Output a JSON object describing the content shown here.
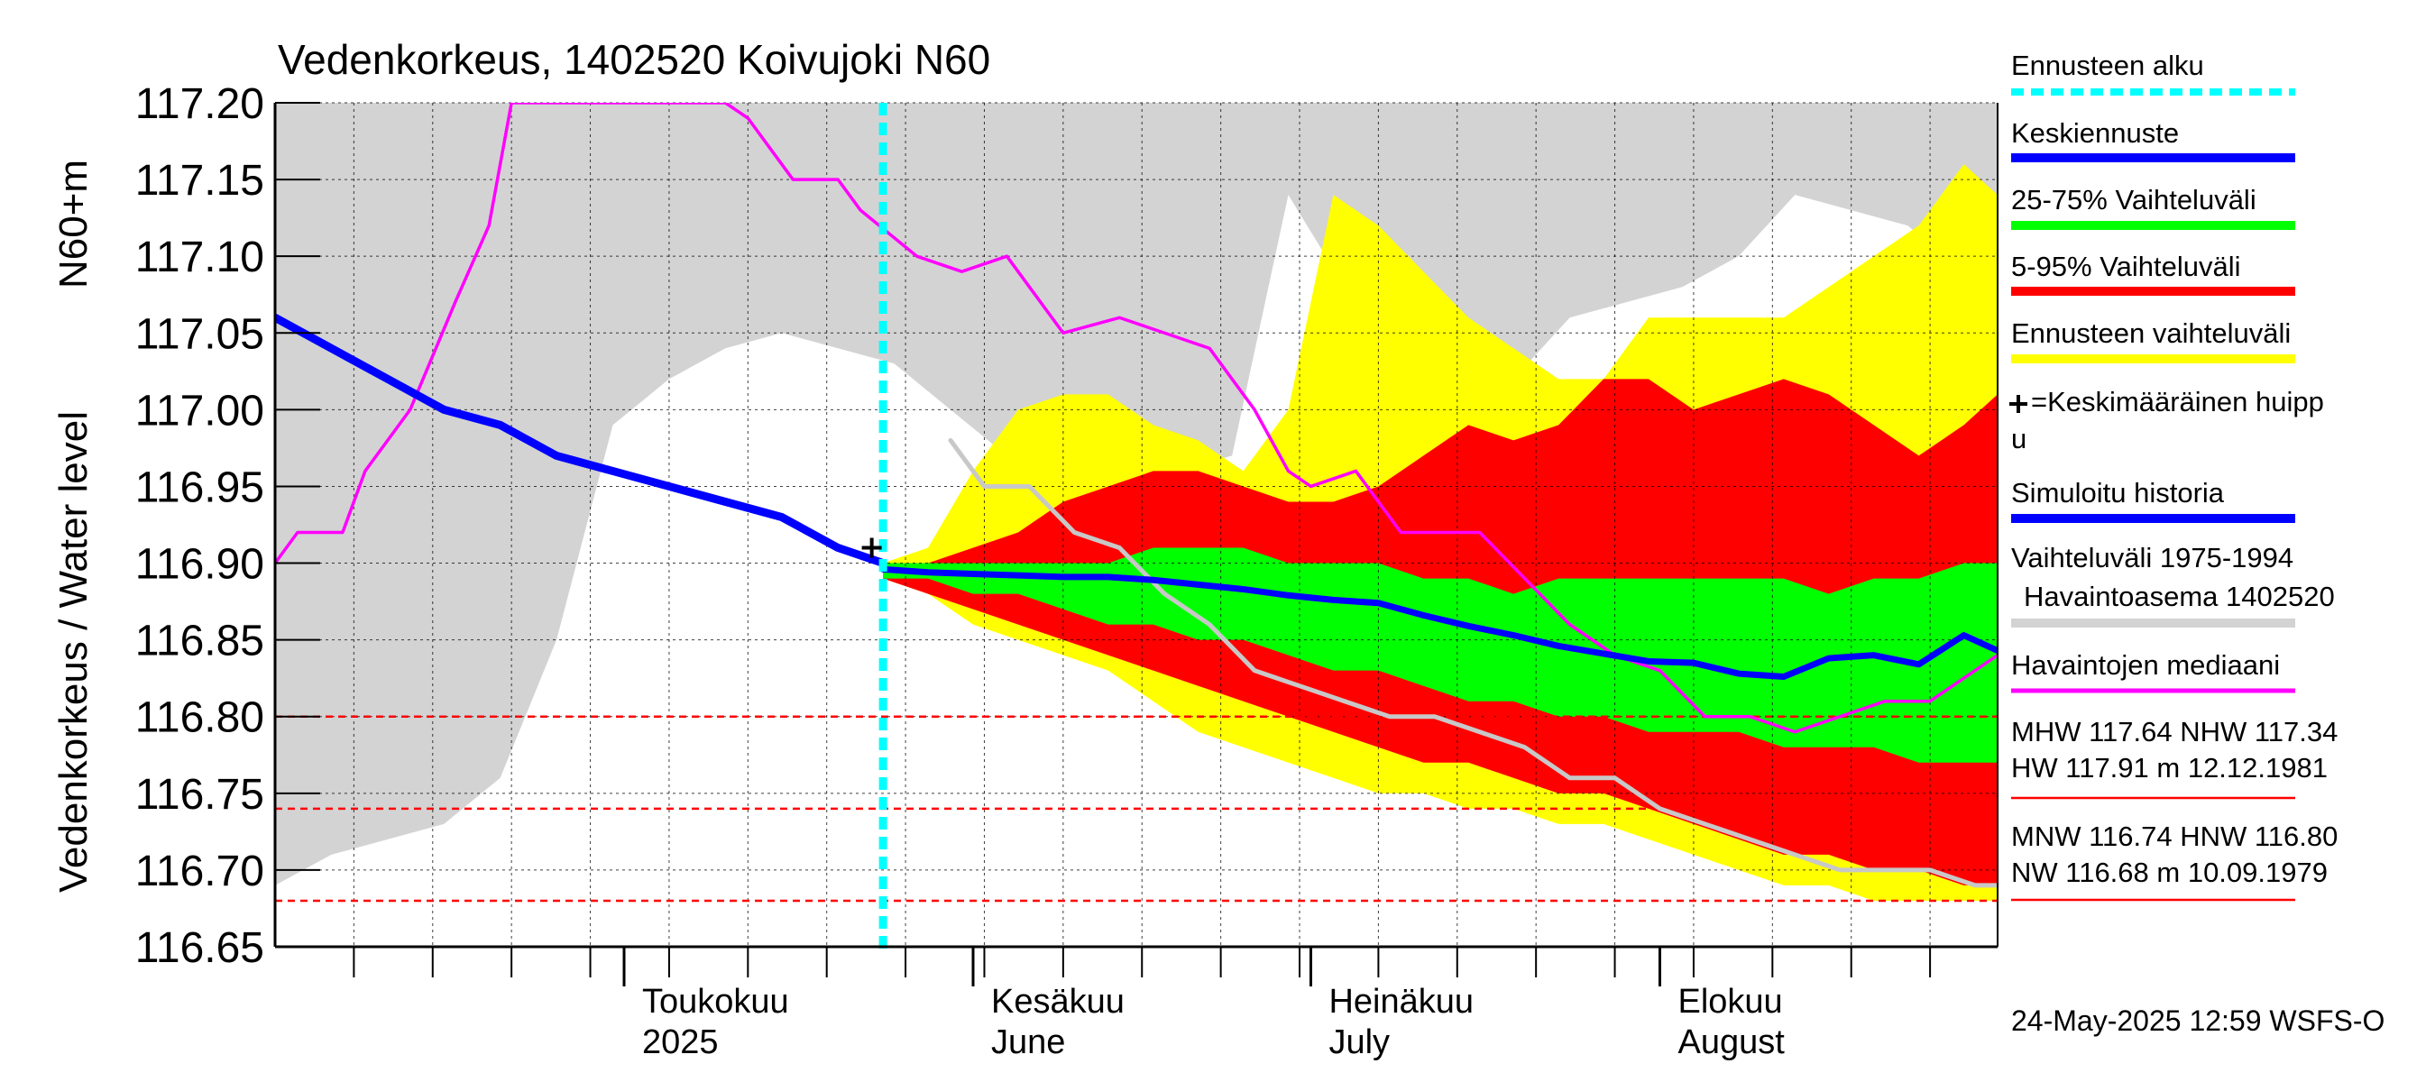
{
  "chart_data": {
    "type": "area",
    "title": "Vedenkorkeus, 1402520 Koivujoki N60",
    "ylabel_top": "N60+m",
    "ylabel": "Vedenkorkeus / Water level",
    "ylim": [
      116.65,
      117.2
    ],
    "yticks": [
      "117.20",
      "117.15",
      "117.10",
      "117.05",
      "117.00",
      "116.95",
      "116.90",
      "116.85",
      "116.80",
      "116.75",
      "116.70",
      "116.65"
    ],
    "xlim": [
      "2025-03-31",
      "2025-08-31"
    ],
    "month_labels": [
      {
        "line1": "Toukokuu",
        "line2": "2025",
        "date": "2025-05-01"
      },
      {
        "line1": "Kesäkuu",
        "line2": "June",
        "date": "2025-06-01"
      },
      {
        "line1": "Heinäkuu",
        "line2": "July",
        "date": "2025-07-01"
      },
      {
        "line1": "Elokuu",
        "line2": "August",
        "date": "2025-08-01"
      }
    ],
    "forecast_start": "2025-05-24",
    "mean_peak": {
      "date": "2025-05-23",
      "value": 116.91
    },
    "hlines": [
      {
        "value": 116.8,
        "color": "#ff0000"
      },
      {
        "value": 116.74,
        "color": "#ff0000"
      },
      {
        "value": 116.68,
        "color": "#ff0000"
      }
    ],
    "series": [
      {
        "name": "Vaihteluväli 1975-1994",
        "color": "#d3d3d3",
        "x": [
          "2025-03-31",
          "2025-04-05",
          "2025-04-10",
          "2025-04-15",
          "2025-04-20",
          "2025-04-25",
          "2025-04-30",
          "2025-05-05",
          "2025-05-10",
          "2025-05-15",
          "2025-05-20",
          "2025-05-25",
          "2025-05-30",
          "2025-06-04",
          "2025-06-09",
          "2025-06-14",
          "2025-06-19",
          "2025-06-24",
          "2025-06-29",
          "2025-07-04",
          "2025-07-09",
          "2025-07-14",
          "2025-07-19",
          "2025-07-24",
          "2025-07-29",
          "2025-08-03",
          "2025-08-08",
          "2025-08-13",
          "2025-08-18",
          "2025-08-23",
          "2025-08-28",
          "2025-08-31"
        ],
        "upper": [
          117.2,
          117.2,
          117.2,
          117.2,
          117.2,
          117.2,
          117.2,
          117.2,
          117.2,
          117.2,
          117.2,
          117.2,
          117.2,
          117.2,
          117.2,
          117.2,
          117.2,
          117.2,
          117.2,
          117.2,
          117.2,
          117.2,
          117.2,
          117.2,
          117.2,
          117.2,
          117.2,
          117.2,
          117.2,
          117.2,
          117.2,
          117.2
        ],
        "lower": [
          116.69,
          116.71,
          116.72,
          116.73,
          116.76,
          116.85,
          116.99,
          117.02,
          117.04,
          117.05,
          117.04,
          117.03,
          117.0,
          116.97,
          116.97,
          116.97,
          116.96,
          116.97,
          117.14,
          117.08,
          117.04,
          117.04,
          117.02,
          117.06,
          117.07,
          117.08,
          117.1,
          117.14,
          117.13,
          117.12,
          117.09,
          117.08
        ]
      },
      {
        "name": "Ennusteen vaihteluväli",
        "color": "#ffff00",
        "x": [
          "2025-05-24",
          "2025-05-28",
          "2025-06-01",
          "2025-06-05",
          "2025-06-09",
          "2025-06-13",
          "2025-06-17",
          "2025-06-21",
          "2025-06-25",
          "2025-06-29",
          "2025-07-03",
          "2025-07-07",
          "2025-07-11",
          "2025-07-15",
          "2025-07-19",
          "2025-07-23",
          "2025-07-27",
          "2025-07-31",
          "2025-08-04",
          "2025-08-08",
          "2025-08-12",
          "2025-08-16",
          "2025-08-20",
          "2025-08-24",
          "2025-08-28",
          "2025-08-31"
        ],
        "upper": [
          116.9,
          116.91,
          116.96,
          117.0,
          117.01,
          117.01,
          116.99,
          116.98,
          116.96,
          117.0,
          117.14,
          117.12,
          117.09,
          117.06,
          117.04,
          117.02,
          117.02,
          117.06,
          117.06,
          117.06,
          117.06,
          117.08,
          117.1,
          117.12,
          117.16,
          117.14
        ],
        "lower": [
          116.89,
          116.88,
          116.86,
          116.85,
          116.84,
          116.83,
          116.81,
          116.79,
          116.78,
          116.77,
          116.76,
          116.75,
          116.75,
          116.74,
          116.74,
          116.73,
          116.73,
          116.72,
          116.71,
          116.7,
          116.69,
          116.69,
          116.68,
          116.68,
          116.68,
          116.68
        ]
      },
      {
        "name": "5-95% Vaihteluväli",
        "color": "#ff0000",
        "x": [
          "2025-05-24",
          "2025-05-28",
          "2025-06-01",
          "2025-06-05",
          "2025-06-09",
          "2025-06-13",
          "2025-06-17",
          "2025-06-21",
          "2025-06-25",
          "2025-06-29",
          "2025-07-03",
          "2025-07-07",
          "2025-07-11",
          "2025-07-15",
          "2025-07-19",
          "2025-07-23",
          "2025-07-27",
          "2025-07-31",
          "2025-08-04",
          "2025-08-08",
          "2025-08-12",
          "2025-08-16",
          "2025-08-20",
          "2025-08-24",
          "2025-08-28",
          "2025-08-31"
        ],
        "upper": [
          116.9,
          116.9,
          116.91,
          116.92,
          116.94,
          116.95,
          116.96,
          116.96,
          116.95,
          116.94,
          116.94,
          116.95,
          116.97,
          116.99,
          116.98,
          116.99,
          117.02,
          117.02,
          117.0,
          117.01,
          117.02,
          117.01,
          116.99,
          116.97,
          116.99,
          117.01
        ],
        "lower": [
          116.89,
          116.88,
          116.87,
          116.86,
          116.85,
          116.84,
          116.83,
          116.82,
          116.81,
          116.8,
          116.79,
          116.78,
          116.77,
          116.77,
          116.76,
          116.75,
          116.75,
          116.74,
          116.73,
          116.72,
          116.71,
          116.71,
          116.7,
          116.7,
          116.69,
          116.69
        ]
      },
      {
        "name": "25-75% Vaihteluväli",
        "color": "#00ff00",
        "x": [
          "2025-05-24",
          "2025-05-28",
          "2025-06-01",
          "2025-06-05",
          "2025-06-09",
          "2025-06-13",
          "2025-06-17",
          "2025-06-21",
          "2025-06-25",
          "2025-06-29",
          "2025-07-03",
          "2025-07-07",
          "2025-07-11",
          "2025-07-15",
          "2025-07-19",
          "2025-07-23",
          "2025-07-27",
          "2025-07-31",
          "2025-08-04",
          "2025-08-08",
          "2025-08-12",
          "2025-08-16",
          "2025-08-20",
          "2025-08-24",
          "2025-08-28",
          "2025-08-31"
        ],
        "upper": [
          116.9,
          116.9,
          116.9,
          116.9,
          116.9,
          116.9,
          116.91,
          116.91,
          116.91,
          116.9,
          116.9,
          116.9,
          116.89,
          116.89,
          116.88,
          116.89,
          116.89,
          116.89,
          116.89,
          116.89,
          116.89,
          116.88,
          116.89,
          116.89,
          116.9,
          116.9
        ],
        "lower": [
          116.89,
          116.89,
          116.88,
          116.88,
          116.87,
          116.86,
          116.86,
          116.85,
          116.85,
          116.84,
          116.83,
          116.83,
          116.82,
          116.81,
          116.81,
          116.8,
          116.8,
          116.79,
          116.79,
          116.79,
          116.78,
          116.78,
          116.78,
          116.77,
          116.77,
          116.77
        ]
      },
      {
        "name": "Keskiennuste",
        "color": "#0000ff",
        "x": [
          "2025-05-24",
          "2025-05-28",
          "2025-06-01",
          "2025-06-05",
          "2025-06-09",
          "2025-06-13",
          "2025-06-17",
          "2025-06-21",
          "2025-06-25",
          "2025-06-29",
          "2025-07-03",
          "2025-07-07",
          "2025-07-11",
          "2025-07-15",
          "2025-07-19",
          "2025-07-23",
          "2025-07-27",
          "2025-07-31",
          "2025-08-04",
          "2025-08-08",
          "2025-08-12",
          "2025-08-16",
          "2025-08-20",
          "2025-08-24",
          "2025-08-28",
          "2025-08-31"
        ],
        "values": [
          116.896,
          116.894,
          116.893,
          116.892,
          116.891,
          116.891,
          116.889,
          116.886,
          116.883,
          116.879,
          116.876,
          116.874,
          116.866,
          116.859,
          116.853,
          116.846,
          116.841,
          116.836,
          116.835,
          116.828,
          116.826,
          116.838,
          116.84,
          116.834,
          116.853,
          116.843
        ]
      },
      {
        "name": "Simuloitu historia",
        "color": "#0000ff",
        "x": [
          "2025-03-31",
          "2025-04-05",
          "2025-04-10",
          "2025-04-15",
          "2025-04-20",
          "2025-04-25",
          "2025-04-30",
          "2025-05-05",
          "2025-05-10",
          "2025-05-15",
          "2025-05-20",
          "2025-05-24"
        ],
        "values": [
          117.06,
          117.04,
          117.02,
          117.0,
          116.99,
          116.97,
          116.96,
          116.95,
          116.94,
          116.93,
          116.91,
          116.9
        ]
      },
      {
        "name": "Havaintojen mediaani",
        "color": "#ff00ff",
        "x": [
          "2025-03-31",
          "2025-04-02",
          "2025-04-06",
          "2025-04-08",
          "2025-04-12",
          "2025-04-16",
          "2025-04-19",
          "2025-04-21",
          "2025-05-10",
          "2025-05-12",
          "2025-05-16",
          "2025-05-20",
          "2025-05-22",
          "2025-05-27",
          "2025-05-31",
          "2025-06-04",
          "2025-06-09",
          "2025-06-14",
          "2025-06-18",
          "2025-06-22",
          "2025-06-26",
          "2025-06-29",
          "2025-07-01",
          "2025-07-05",
          "2025-07-09",
          "2025-07-13",
          "2025-07-16",
          "2025-07-20",
          "2025-07-24",
          "2025-07-28",
          "2025-08-01",
          "2025-08-05",
          "2025-08-09",
          "2025-08-13",
          "2025-08-17",
          "2025-08-21",
          "2025-08-25",
          "2025-08-29",
          "2025-08-31"
        ],
        "values": [
          116.9,
          116.92,
          116.92,
          116.96,
          117.0,
          117.07,
          117.12,
          117.2,
          117.2,
          117.19,
          117.15,
          117.15,
          117.13,
          117.1,
          117.09,
          117.1,
          117.05,
          117.06,
          117.05,
          117.04,
          117.0,
          116.96,
          116.95,
          116.96,
          116.92,
          116.92,
          116.92,
          116.89,
          116.86,
          116.84,
          116.83,
          116.8,
          116.8,
          116.79,
          116.8,
          116.81,
          116.81,
          116.83,
          116.84
        ]
      },
      {
        "name": "Havaintoasema 1402520",
        "color": "#c8c8c8",
        "x": [
          "2025-05-30",
          "2025-06-02",
          "2025-06-06",
          "2025-06-10",
          "2025-06-14",
          "2025-06-18",
          "2025-06-22",
          "2025-06-26",
          "2025-06-30",
          "2025-07-04",
          "2025-07-08",
          "2025-07-12",
          "2025-07-16",
          "2025-07-20",
          "2025-07-24",
          "2025-07-28",
          "2025-08-01",
          "2025-08-05",
          "2025-08-09",
          "2025-08-13",
          "2025-08-17",
          "2025-08-21",
          "2025-08-25",
          "2025-08-29",
          "2025-08-31"
        ],
        "values": [
          116.98,
          116.95,
          116.95,
          116.92,
          116.91,
          116.88,
          116.86,
          116.83,
          116.82,
          116.81,
          116.8,
          116.8,
          116.79,
          116.78,
          116.76,
          116.76,
          116.74,
          116.73,
          116.72,
          116.71,
          116.7,
          116.7,
          116.7,
          116.69,
          116.69
        ]
      }
    ],
    "legend": [
      {
        "label": "Ennusteen alku",
        "color": "#00ffff",
        "style": "dashed"
      },
      {
        "label": "Keskiennuste",
        "color": "#0000ff",
        "style": "solid"
      },
      {
        "label": "25-75% Vaihteluväli",
        "color": "#00ff00",
        "style": "solid"
      },
      {
        "label": "5-95% Vaihteluväli",
        "color": "#ff0000",
        "style": "solid"
      },
      {
        "label": "Ennusteen vaihteluväli",
        "color": "#ffff00",
        "style": "solid"
      },
      {
        "label": "=Keskimääräinen huippu",
        "color": "#000000",
        "style": "marker"
      },
      {
        "label": "Simuloitu historia",
        "color": "#0000ff",
        "style": "solid"
      },
      {
        "label": "Vaihteluväli 1975-1994",
        "color": "",
        "style": "none"
      },
      {
        "label": "Havaintoasema 1402520",
        "color": "#d3d3d3",
        "style": "solid"
      },
      {
        "label": "Havaintojen mediaani",
        "color": "#ff00ff",
        "style": "solid"
      }
    ],
    "stats": [
      "MHW 117.64 NHW 117.34",
      "HW 117.91 m 12.12.1981",
      "MNW 116.74 HNW 116.80",
      "NW 116.68 m 10.09.1979"
    ],
    "footer": "24-May-2025 12:59 WSFS-O"
  }
}
